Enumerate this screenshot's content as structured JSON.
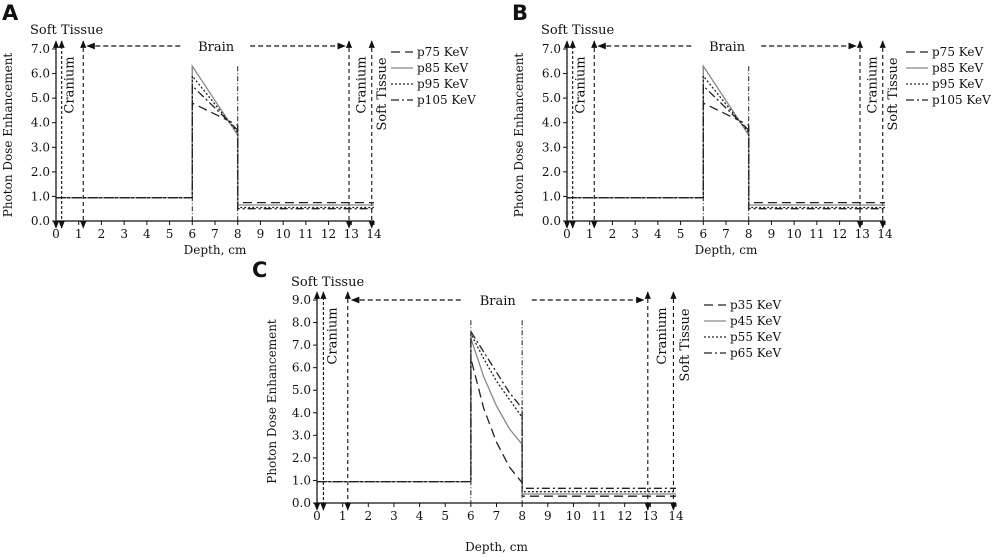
{
  "chart_data": [
    {
      "panel": "A",
      "type": "line",
      "xlabel": "Depth, cm",
      "ylabel": "Photon Dose Enhancement",
      "xlim": [
        0,
        14
      ],
      "ylim": [
        0,
        7
      ],
      "x_ticks": [
        "0",
        "1",
        "2",
        "3",
        "4",
        "5",
        "6",
        "7",
        "8",
        "9",
        "10",
        "11",
        "12",
        "13",
        "14"
      ],
      "y_ticks": [
        "0.0",
        "1.0",
        "2.0",
        "3.0",
        "4.0",
        "5.0",
        "6.0",
        "7.0"
      ],
      "regions": {
        "soft_tissue_top": "Soft Tissue",
        "cranium_left": "Cranium",
        "brain": "Brain",
        "cranium_right": "Cranium",
        "soft_tissue_right": "Soft Tissue"
      },
      "series": [
        {
          "name": "p75 KeV",
          "dash": "long-dash",
          "points": [
            [
              0,
              0.95
            ],
            [
              6,
              0.95
            ],
            [
              6,
              4.8
            ],
            [
              8,
              3.9
            ],
            [
              8,
              0.75
            ],
            [
              14,
              0.75
            ]
          ]
        },
        {
          "name": "p85 KeV",
          "dash": "solid",
          "points": [
            [
              0,
              0.95
            ],
            [
              6,
              0.95
            ],
            [
              6,
              6.3
            ],
            [
              8,
              3.5
            ],
            [
              8,
              0.65
            ],
            [
              14,
              0.65
            ]
          ]
        },
        {
          "name": "p95 KeV",
          "dash": "dotted",
          "points": [
            [
              0,
              0.95
            ],
            [
              6,
              0.95
            ],
            [
              6,
              5.9
            ],
            [
              8,
              3.6
            ],
            [
              8,
              0.55
            ],
            [
              14,
              0.55
            ]
          ]
        },
        {
          "name": "p105 KeV",
          "dash": "dash-dot",
          "points": [
            [
              0,
              0.95
            ],
            [
              6,
              0.95
            ],
            [
              6,
              5.5
            ],
            [
              8,
              3.7
            ],
            [
              8,
              0.5
            ],
            [
              14,
              0.5
            ]
          ]
        }
      ]
    },
    {
      "panel": "B",
      "type": "line",
      "xlabel": "Depth, cm",
      "ylabel": "Photon Dose Enhancement",
      "xlim": [
        0,
        14
      ],
      "ylim": [
        0,
        7
      ],
      "x_ticks": [
        "0",
        "1",
        "2",
        "3",
        "4",
        "5",
        "6",
        "7",
        "8",
        "9",
        "10",
        "11",
        "12",
        "13",
        "14"
      ],
      "y_ticks": [
        "0.0",
        "1.0",
        "2.0",
        "3.0",
        "4.0",
        "5.0",
        "6.0",
        "7.0"
      ],
      "regions": {
        "soft_tissue_top": "Soft Tissue",
        "cranium_left": "Cranium",
        "brain": "Brain",
        "cranium_right": "Cranium",
        "soft_tissue_right": "Soft Tissue"
      },
      "series": [
        {
          "name": "p75 KeV",
          "dash": "long-dash",
          "points": [
            [
              0,
              0.95
            ],
            [
              6,
              0.95
            ],
            [
              6,
              4.8
            ],
            [
              8,
              3.9
            ],
            [
              8,
              0.75
            ],
            [
              14,
              0.75
            ]
          ]
        },
        {
          "name": "p85 KeV",
          "dash": "solid",
          "points": [
            [
              0,
              0.95
            ],
            [
              6,
              0.95
            ],
            [
              6,
              6.3
            ],
            [
              8,
              3.5
            ],
            [
              8,
              0.65
            ],
            [
              14,
              0.65
            ]
          ]
        },
        {
          "name": "p95 KeV",
          "dash": "dotted",
          "points": [
            [
              0,
              0.95
            ],
            [
              6,
              0.95
            ],
            [
              6,
              5.9
            ],
            [
              8,
              3.6
            ],
            [
              8,
              0.55
            ],
            [
              14,
              0.55
            ]
          ]
        },
        {
          "name": "p105 KeV",
          "dash": "dash-dot",
          "points": [
            [
              0,
              0.95
            ],
            [
              6,
              0.95
            ],
            [
              6,
              5.5
            ],
            [
              8,
              3.7
            ],
            [
              8,
              0.5
            ],
            [
              14,
              0.5
            ]
          ]
        }
      ]
    },
    {
      "panel": "C",
      "type": "line",
      "xlabel": "Depth, cm",
      "ylabel": "Photon Dose Enhancement",
      "xlim": [
        0,
        14
      ],
      "ylim": [
        0,
        9
      ],
      "x_ticks": [
        "0",
        "1",
        "2",
        "3",
        "4",
        "5",
        "6",
        "7",
        "8",
        "9",
        "10",
        "11",
        "12",
        "13",
        "14"
      ],
      "y_ticks": [
        "0.0",
        "1.0",
        "2.0",
        "3.0",
        "4.0",
        "5.0",
        "6.0",
        "7.0",
        "8.0",
        "9.0"
      ],
      "regions": {
        "soft_tissue_top": "Soft Tissue",
        "cranium_left": "Cranium",
        "brain": "Brain",
        "cranium_right": "Cranium",
        "soft_tissue_right": "Soft Tissue"
      },
      "series": [
        {
          "name": "p35 KeV",
          "dash": "long-dash",
          "points": [
            [
              0,
              0.95
            ],
            [
              6,
              0.95
            ],
            [
              6,
              6.4
            ],
            [
              6.5,
              4.2
            ],
            [
              7,
              2.7
            ],
            [
              7.5,
              1.6
            ],
            [
              8,
              0.9
            ],
            [
              8,
              0.3
            ],
            [
              14,
              0.3
            ]
          ]
        },
        {
          "name": "p45 KeV",
          "dash": "solid",
          "points": [
            [
              0,
              0.95
            ],
            [
              6,
              0.95
            ],
            [
              6,
              7.3
            ],
            [
              6.5,
              5.6
            ],
            [
              7,
              4.3
            ],
            [
              7.5,
              3.3
            ],
            [
              8,
              2.6
            ],
            [
              8,
              0.4
            ],
            [
              14,
              0.4
            ]
          ]
        },
        {
          "name": "p55 KeV",
          "dash": "dotted",
          "points": [
            [
              0,
              0.95
            ],
            [
              6,
              0.95
            ],
            [
              6,
              7.5
            ],
            [
              6.5,
              6.4
            ],
            [
              7,
              5.4
            ],
            [
              7.5,
              4.6
            ],
            [
              8,
              3.8
            ],
            [
              8,
              0.5
            ],
            [
              14,
              0.5
            ]
          ]
        },
        {
          "name": "p65 KeV",
          "dash": "dash-dot",
          "points": [
            [
              0,
              0.95
            ],
            [
              6,
              0.95
            ],
            [
              6,
              7.6
            ],
            [
              6.5,
              6.7
            ],
            [
              7,
              5.8
            ],
            [
              7.5,
              4.9
            ],
            [
              8,
              4.2
            ],
            [
              8,
              0.65
            ],
            [
              14,
              0.65
            ]
          ]
        }
      ]
    }
  ]
}
